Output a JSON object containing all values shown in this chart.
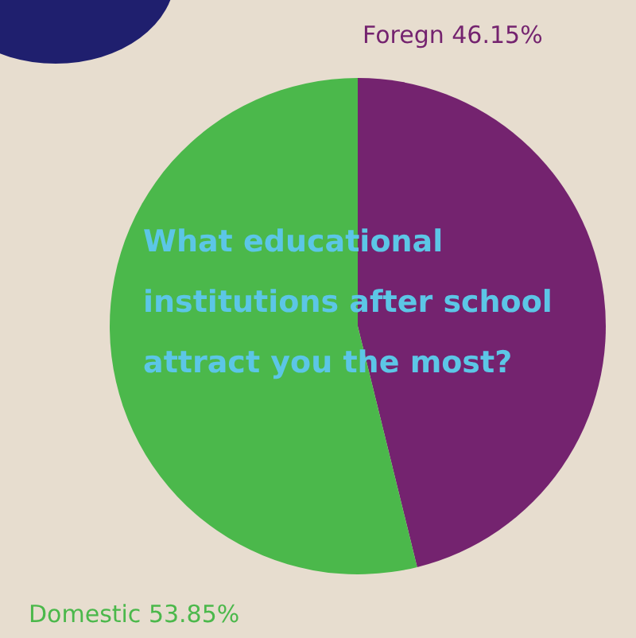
{
  "chart_data": {
    "type": "pie",
    "title": "What educational institutions after school attract you the most?",
    "categories": [
      "Foregn",
      "Domestic"
    ],
    "values": [
      46.15,
      53.85
    ],
    "value_labels": [
      "46.15%",
      "53.85%"
    ],
    "colors": [
      "#74236f",
      "#4bb84b"
    ],
    "legend": false
  }
}
